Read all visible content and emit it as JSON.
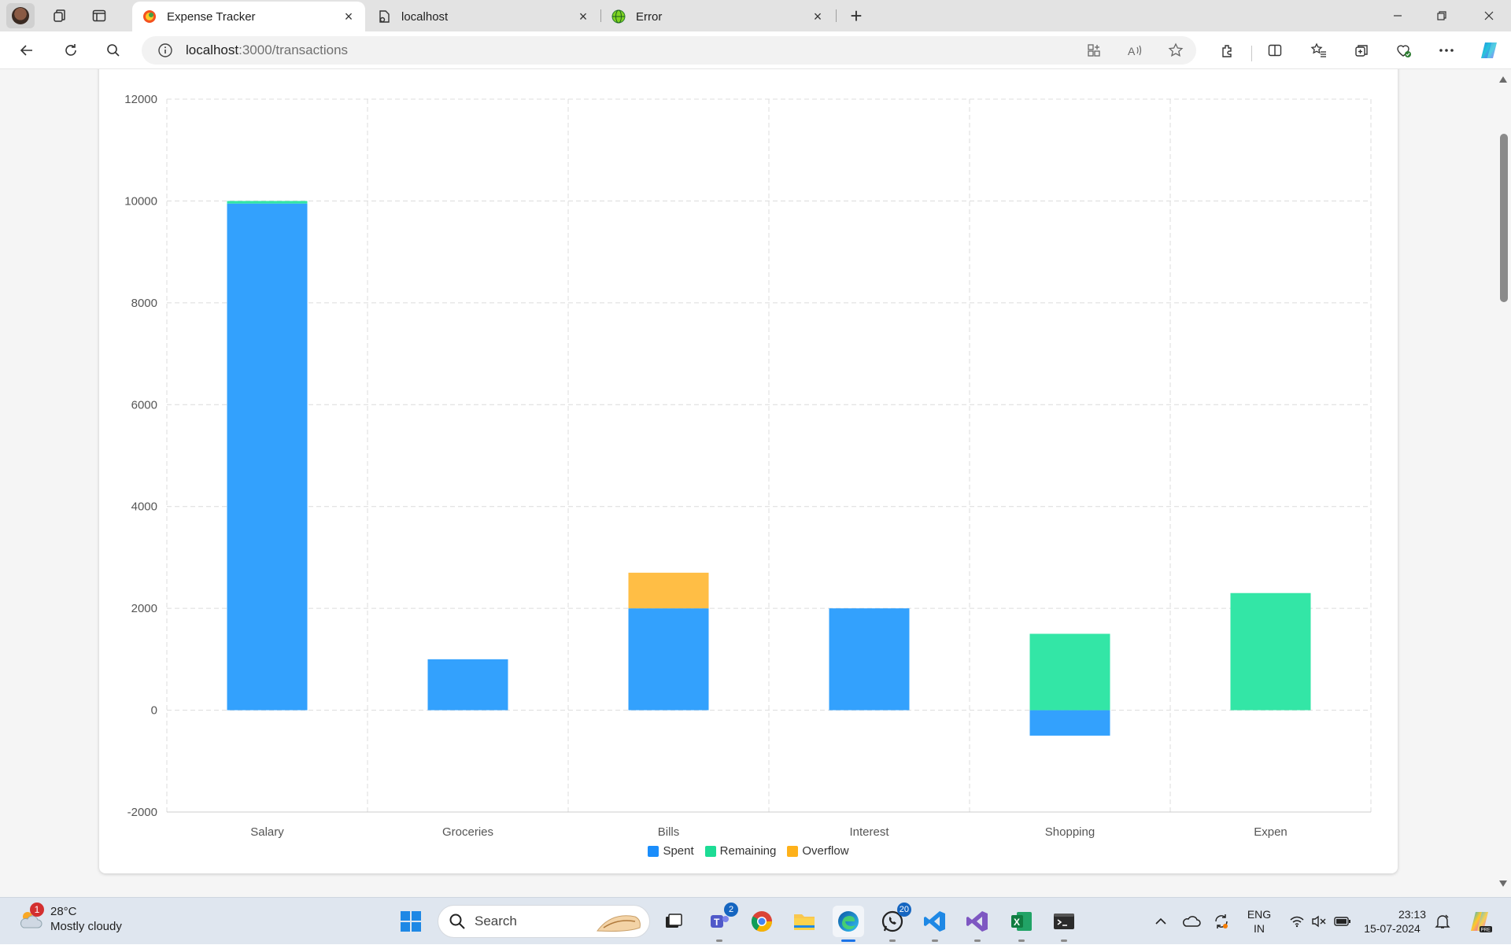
{
  "browser": {
    "tabs": [
      {
        "label": "Expense Tracker",
        "active": true
      },
      {
        "label": "localhost",
        "active": false
      },
      {
        "label": "Error",
        "active": false
      }
    ],
    "url_host": "localhost",
    "url_path": ":3000/transactions"
  },
  "chart_data": {
    "type": "bar",
    "stacked": true,
    "categories": [
      "Salary",
      "Groceries",
      "Bills",
      "Interest",
      "Shopping",
      "Expen"
    ],
    "series": [
      {
        "name": "Spent",
        "color": "#33a1fd",
        "values": [
          9950,
          1000,
          2000,
          2000,
          -500,
          0
        ]
      },
      {
        "name": "Remaining",
        "color": "#33e6a6",
        "values": [
          50,
          0,
          0,
          0,
          1500,
          2300
        ]
      },
      {
        "name": "Overflow",
        "color": "#ffbe45",
        "values": [
          0,
          0,
          700,
          0,
          0,
          0
        ]
      }
    ],
    "ylim": [
      -2000,
      12000
    ],
    "yticks": [
      "12000",
      "10000",
      "8000",
      "6000",
      "4000",
      "2000",
      "0",
      "-2000"
    ],
    "grid": true,
    "legend_position": "bottom"
  },
  "taskbar": {
    "weather_temp": "28°C",
    "weather_desc": "Mostly cloudy",
    "weather_badge": "1",
    "search_placeholder": "Search",
    "teams_badge": "2",
    "whatsapp_badge": "20",
    "lang_line1": "ENG",
    "lang_line2": "IN",
    "time": "23:13",
    "date": "15-07-2024"
  }
}
